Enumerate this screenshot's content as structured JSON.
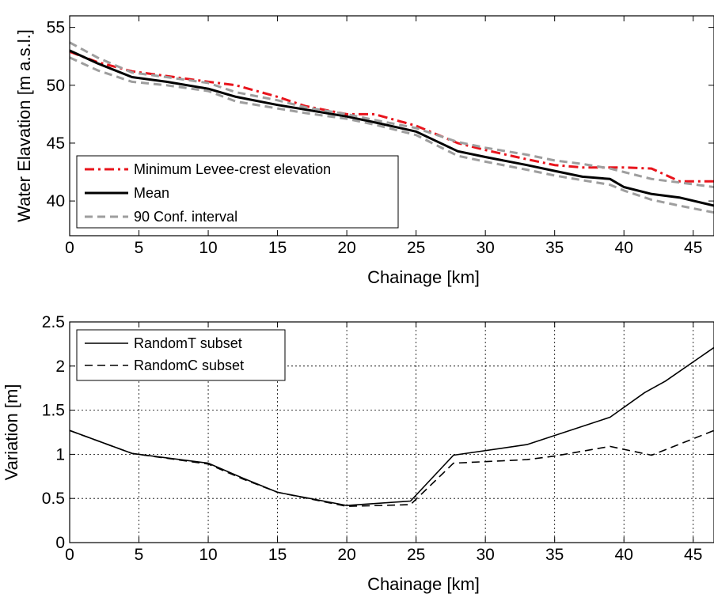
{
  "chart_data": [
    {
      "type": "line",
      "xlabel": "Chainage [km]",
      "ylabel": "Water Elavation [m a.s.l.]",
      "xlim": [
        0,
        46.5
      ],
      "ylim": [
        37,
        56
      ],
      "xticks": [
        "0",
        "5",
        "10",
        "15",
        "20",
        "25",
        "30",
        "35",
        "40",
        "45"
      ],
      "yticks": [
        "40",
        "45",
        "50",
        "55"
      ],
      "grid": false,
      "legend_position": "bottom-left",
      "series": [
        {
          "name": "Minimum Levee-crest elevation",
          "color": "#e8141c",
          "style": "dashdot",
          "x": [
            0,
            2,
            4.5,
            7,
            10,
            12,
            15,
            17,
            20,
            22,
            25,
            28,
            30,
            33,
            35,
            37,
            39,
            40,
            42,
            44,
            46.5
          ],
          "y": [
            52.9,
            52.0,
            51.2,
            50.8,
            50.3,
            50.0,
            49.0,
            48.2,
            47.5,
            47.5,
            46.5,
            45.0,
            44.4,
            43.6,
            43.1,
            42.9,
            42.9,
            42.9,
            42.8,
            41.7,
            41.7
          ]
        },
        {
          "name": "Mean",
          "color": "#000000",
          "style": "solid",
          "x": [
            0,
            2,
            4.5,
            7,
            10,
            12,
            15,
            17,
            20,
            22,
            25,
            28,
            30,
            33,
            35,
            37,
            39,
            40,
            42,
            44,
            46.5
          ],
          "y": [
            53.0,
            51.9,
            50.7,
            50.3,
            49.7,
            49.0,
            48.3,
            47.9,
            47.3,
            46.8,
            46.0,
            44.3,
            43.8,
            43.1,
            42.6,
            42.1,
            41.9,
            41.2,
            40.6,
            40.3,
            39.6
          ]
        },
        {
          "name": "90 Conf. interval",
          "color": "#9e9e9e",
          "style": "dashed",
          "x": [
            0,
            2,
            4.5,
            7,
            10,
            12,
            15,
            17,
            20,
            22,
            25,
            28,
            30,
            33,
            35,
            37,
            39,
            40,
            42,
            44,
            46.5
          ],
          "y": [
            53.7,
            52.4,
            51.1,
            50.7,
            50.2,
            49.4,
            48.7,
            48.1,
            47.5,
            47.0,
            46.3,
            45.1,
            44.6,
            44.0,
            43.5,
            43.2,
            42.8,
            42.5,
            41.9,
            41.6,
            41.2
          ]
        },
        {
          "name": "",
          "color": "#9e9e9e",
          "style": "dashed",
          "x": [
            0,
            2,
            4.5,
            7,
            10,
            12,
            15,
            17,
            20,
            22,
            25,
            28,
            30,
            33,
            35,
            37,
            39,
            40,
            42,
            44,
            46.5
          ],
          "y": [
            52.4,
            51.3,
            50.3,
            50.0,
            49.5,
            48.6,
            48.0,
            47.6,
            47.1,
            46.6,
            45.7,
            43.9,
            43.4,
            42.7,
            42.2,
            41.8,
            41.4,
            40.9,
            40.1,
            39.6,
            39.0
          ]
        }
      ]
    },
    {
      "type": "line",
      "xlabel": "Chainage [km]",
      "ylabel": "Variation [m]",
      "xlim": [
        0,
        46.5
      ],
      "ylim": [
        0,
        2.5
      ],
      "xticks": [
        "0",
        "5",
        "10",
        "15",
        "20",
        "25",
        "30",
        "35",
        "40",
        "45"
      ],
      "yticks": [
        "0",
        "0.5",
        "1",
        "1.5",
        "2",
        "2.5"
      ],
      "grid": true,
      "legend_position": "top-left",
      "series": [
        {
          "name": "RandomT subset",
          "color": "#000000",
          "style": "solid",
          "x": [
            0,
            4.5,
            10,
            12.5,
            15,
            20,
            24.6,
            27.7,
            33,
            39,
            41.5,
            43,
            46.5
          ],
          "y": [
            1.27,
            1.01,
            0.9,
            0.73,
            0.57,
            0.42,
            0.47,
            0.99,
            1.11,
            1.42,
            1.7,
            1.83,
            2.21
          ]
        },
        {
          "name": "RandomC subset",
          "color": "#000000",
          "style": "dashed",
          "x": [
            0,
            4.5,
            10,
            12.5,
            15,
            20,
            24.6,
            27.7,
            33,
            35,
            39,
            42,
            46.5
          ],
          "y": [
            1.27,
            1.01,
            0.89,
            0.72,
            0.57,
            0.41,
            0.43,
            0.9,
            0.94,
            0.98,
            1.09,
            0.99,
            1.27
          ]
        }
      ]
    }
  ]
}
